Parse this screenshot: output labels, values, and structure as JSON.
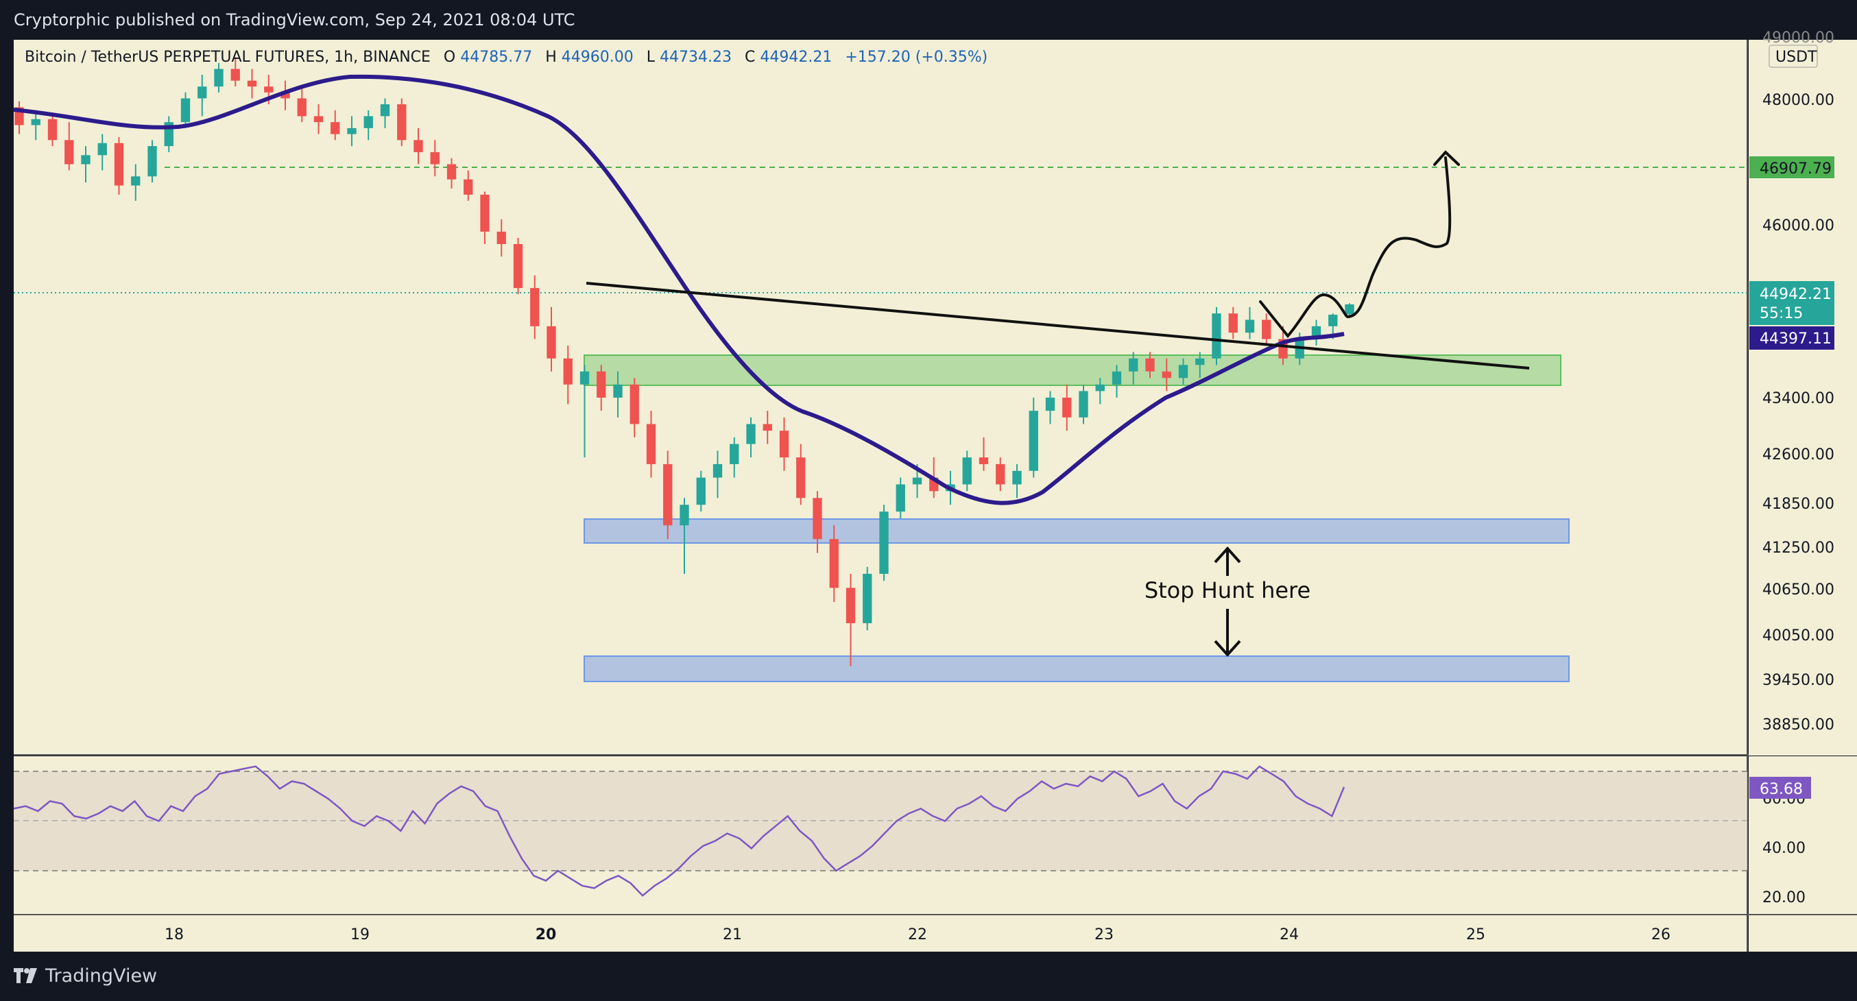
{
  "header": {
    "publish_text": "Cryptorphic published on TradingView.com, Sep 24, 2021 08:04 UTC"
  },
  "footer": {
    "brand": "TradingView"
  },
  "legend": {
    "symbol": "Bitcoin / TetherUS PERPETUAL FUTURES, 1h, BINANCE",
    "o_label": "O",
    "o_value": "44785.77",
    "h_label": "H",
    "h_value": "44960.00",
    "l_label": "L",
    "l_value": "44734.23",
    "c_label": "C",
    "c_value": "44942.21",
    "change": "+157.20 (+0.35%)"
  },
  "price_axis": {
    "currency": "USDT",
    "ticks": [
      "49000.00",
      "48000.00",
      "46000.00",
      "43400.00",
      "42600.00",
      "41850.00",
      "41250.00",
      "40650.00",
      "40050.00",
      "39450.00",
      "38850.00"
    ],
    "target_label": "46907.79",
    "last_price_label": "44942.21",
    "countdown": "55:15",
    "ma_label": "44397.11"
  },
  "rsi_axis": {
    "ticks": [
      "60.00",
      "40.00",
      "20.00"
    ],
    "current_label": "63.68"
  },
  "time_axis": {
    "ticks": [
      "18",
      "19",
      "20",
      "21",
      "22",
      "23",
      "24",
      "25",
      "26"
    ]
  },
  "annotation": {
    "stop_hunt": "Stop Hunt here"
  },
  "colors": {
    "background": "#f2efd6",
    "up": "#26a69a",
    "down": "#ef5350",
    "ma": "#2d1b8c",
    "rsi": "#7e57c2",
    "green_zone": "#5cbf5c",
    "blue_zone": "#6f98e8"
  },
  "chart_data": {
    "type": "candlestick",
    "interval": "1h",
    "y_scale": "log",
    "ylim": [
      38400,
      49300
    ],
    "time_axis": [
      "18",
      "19",
      "20",
      "21",
      "22",
      "23",
      "24",
      "25",
      "26"
    ],
    "candles_approx": [
      [
        48150,
        48250,
        47700,
        47850
      ],
      [
        47850,
        48100,
        47600,
        47950
      ],
      [
        47950,
        48050,
        47500,
        47600
      ],
      [
        47600,
        47900,
        47100,
        47200
      ],
      [
        47200,
        47500,
        46900,
        47350
      ],
      [
        47350,
        47700,
        47100,
        47550
      ],
      [
        47550,
        47650,
        46700,
        46850
      ],
      [
        46850,
        47200,
        46600,
        47000
      ],
      [
        47000,
        47600,
        46900,
        47500
      ],
      [
        47500,
        48000,
        47400,
        47900
      ],
      [
        47900,
        48400,
        47800,
        48300
      ],
      [
        48300,
        48700,
        48000,
        48500
      ],
      [
        48500,
        48900,
        48400,
        48800
      ],
      [
        48800,
        49000,
        48500,
        48600
      ],
      [
        48600,
        48800,
        48300,
        48500
      ],
      [
        48500,
        48700,
        48200,
        48400
      ],
      [
        48400,
        48600,
        48100,
        48300
      ],
      [
        48300,
        48500,
        47900,
        48000
      ],
      [
        48000,
        48200,
        47700,
        47900
      ],
      [
        47900,
        48100,
        47600,
        47700
      ],
      [
        47700,
        48000,
        47500,
        47800
      ],
      [
        47800,
        48100,
        47600,
        48000
      ],
      [
        48000,
        48300,
        47800,
        48200
      ],
      [
        48200,
        48300,
        47500,
        47600
      ],
      [
        47600,
        47800,
        47200,
        47400
      ],
      [
        47400,
        47600,
        47000,
        47200
      ],
      [
        47200,
        47300,
        46800,
        46950
      ],
      [
        46950,
        47100,
        46600,
        46700
      ],
      [
        46700,
        46750,
        45900,
        46100
      ],
      [
        46100,
        46300,
        45700,
        45900
      ],
      [
        45900,
        46000,
        45100,
        45200
      ],
      [
        45200,
        45400,
        44400,
        44600
      ],
      [
        44600,
        44900,
        43900,
        44100
      ],
      [
        44100,
        44300,
        43400,
        43700
      ],
      [
        43700,
        44000,
        42600,
        43900
      ],
      [
        43900,
        44000,
        43300,
        43500
      ],
      [
        43500,
        43900,
        43200,
        43700
      ],
      [
        43700,
        43800,
        42900,
        43100
      ],
      [
        43100,
        43300,
        42300,
        42500
      ],
      [
        42500,
        42700,
        41400,
        41600
      ],
      [
        41600,
        42000,
        40900,
        41900
      ],
      [
        41900,
        42400,
        41800,
        42300
      ],
      [
        42300,
        42700,
        42000,
        42500
      ],
      [
        42500,
        42900,
        42300,
        42800
      ],
      [
        42800,
        43200,
        42600,
        43100
      ],
      [
        43100,
        43300,
        42800,
        43000
      ],
      [
        43000,
        43200,
        42400,
        42600
      ],
      [
        42600,
        42800,
        41900,
        42000
      ],
      [
        42000,
        42100,
        41200,
        41400
      ],
      [
        41400,
        41600,
        40500,
        40700
      ],
      [
        40700,
        40900,
        39600,
        40200
      ],
      [
        40200,
        41000,
        40100,
        40900
      ],
      [
        40900,
        41900,
        40800,
        41800
      ],
      [
        41800,
        42300,
        41700,
        42200
      ],
      [
        42200,
        42500,
        42000,
        42300
      ],
      [
        42300,
        42600,
        42000,
        42100
      ],
      [
        42100,
        42400,
        41900,
        42200
      ],
      [
        42200,
        42700,
        42100,
        42600
      ],
      [
        42600,
        42900,
        42400,
        42500
      ],
      [
        42500,
        42600,
        42100,
        42200
      ],
      [
        42200,
        42500,
        42000,
        42400
      ],
      [
        42400,
        43500,
        42300,
        43300
      ],
      [
        43300,
        43600,
        43100,
        43500
      ],
      [
        43500,
        43700,
        43000,
        43200
      ],
      [
        43200,
        43700,
        43100,
        43600
      ],
      [
        43600,
        43800,
        43400,
        43700
      ],
      [
        43700,
        44000,
        43500,
        43900
      ],
      [
        43900,
        44200,
        43700,
        44100
      ],
      [
        44100,
        44200,
        43800,
        43900
      ],
      [
        43900,
        44100,
        43600,
        43800
      ],
      [
        43800,
        44100,
        43700,
        44000
      ],
      [
        44000,
        44200,
        43800,
        44100
      ],
      [
        44100,
        44900,
        44000,
        44800
      ],
      [
        44800,
        44900,
        44400,
        44500
      ],
      [
        44500,
        44900,
        44400,
        44700
      ],
      [
        44700,
        44800,
        44300,
        44400
      ],
      [
        44400,
        44600,
        44000,
        44100
      ],
      [
        44100,
        44500,
        44000,
        44400
      ],
      [
        44400,
        44700,
        44300,
        44600
      ],
      [
        44600,
        44800,
        44400,
        44780
      ],
      [
        44785.77,
        44960,
        44734.23,
        44942.21
      ]
    ],
    "moving_average_last": 44397.11,
    "target_level": 46907.79,
    "rsi": {
      "ticks": [
        20,
        40,
        60
      ],
      "bands": [
        30,
        70
      ],
      "last": 63.68,
      "values": [
        55,
        56,
        54,
        58,
        57,
        52,
        51,
        53,
        56,
        54,
        58,
        52,
        50,
        56,
        54,
        60,
        63,
        69,
        70,
        71,
        72,
        68,
        63,
        66,
        65,
        62,
        59,
        55,
        50,
        48,
        52,
        50,
        46,
        54,
        49,
        57,
        61,
        64,
        62,
        56,
        54,
        44,
        35,
        28,
        26,
        30,
        27,
        24,
        23,
        26,
        28,
        25,
        20,
        24,
        27,
        31,
        36,
        40,
        42,
        45,
        43,
        39,
        44,
        48,
        52,
        46,
        42,
        35,
        30,
        33,
        36,
        40,
        45,
        50,
        53,
        55,
        52,
        50,
        55,
        57,
        60,
        56,
        54,
        59,
        62,
        66,
        63,
        65,
        64,
        68,
        66,
        70,
        67,
        60,
        62,
        65,
        58,
        55,
        60,
        63,
        70,
        69,
        67,
        72,
        69,
        66,
        60,
        57,
        55,
        52,
        63.68
      ]
    }
  }
}
